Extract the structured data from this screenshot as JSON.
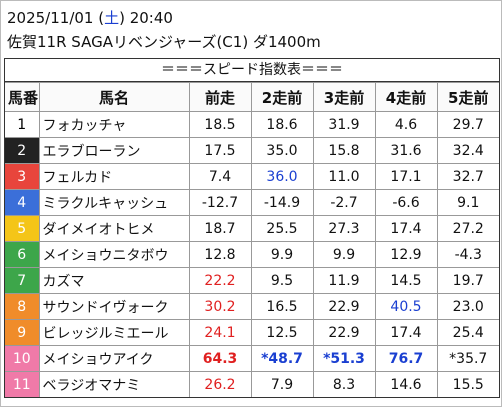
{
  "header": {
    "date_prefix": "2025/11/01 (",
    "weekday": "土",
    "date_suffix": ") 20:40",
    "race": "佐賀11R SAGAリベンジャーズ(C1) ダ1400m"
  },
  "table": {
    "title": "＝＝＝スピード指数表＝＝＝",
    "columns": [
      "馬番",
      "馬名",
      "前走",
      "2走前",
      "3走前",
      "4走前",
      "5走前"
    ],
    "rows": [
      {
        "no": "1",
        "name": "フォカッチャ",
        "frame_color": "#ffffff",
        "frame_text": "#000000",
        "bold": false,
        "values": [
          "18.5",
          "18.6",
          "31.9",
          "4.6",
          "29.7"
        ],
        "colors": [
          null,
          null,
          null,
          null,
          null
        ]
      },
      {
        "no": "2",
        "name": "エラブローラン",
        "frame_color": "#222222",
        "frame_text": "#ffffff",
        "bold": false,
        "values": [
          "17.5",
          "35.0",
          "15.8",
          "31.6",
          "32.4"
        ],
        "colors": [
          null,
          null,
          null,
          null,
          null
        ]
      },
      {
        "no": "3",
        "name": "フェルカド",
        "frame_color": "#e8453c",
        "frame_text": "#ffffff",
        "bold": false,
        "values": [
          "7.4",
          "36.0",
          "11.0",
          "17.1",
          "32.7"
        ],
        "colors": [
          null,
          "#1a3fd1",
          null,
          null,
          null
        ]
      },
      {
        "no": "4",
        "name": "ミラクルキャッシュ",
        "frame_color": "#3b6fd9",
        "frame_text": "#ffffff",
        "bold": false,
        "values": [
          "-12.7",
          "-14.9",
          "-2.7",
          "-6.6",
          "9.1"
        ],
        "colors": [
          null,
          null,
          null,
          null,
          null
        ]
      },
      {
        "no": "5",
        "name": "ダイメイオトヒメ",
        "frame_color": "#f4c518",
        "frame_text": "#ffffff",
        "bold": false,
        "values": [
          "18.7",
          "25.5",
          "27.3",
          "17.4",
          "27.2"
        ],
        "colors": [
          null,
          null,
          null,
          null,
          null
        ]
      },
      {
        "no": "6",
        "name": "メイショウニタボウ",
        "frame_color": "#3da64a",
        "frame_text": "#ffffff",
        "bold": false,
        "values": [
          "12.8",
          "9.9",
          "9.9",
          "12.9",
          "-4.3"
        ],
        "colors": [
          null,
          null,
          null,
          null,
          null
        ]
      },
      {
        "no": "7",
        "name": "カズマ",
        "frame_color": "#3da64a",
        "frame_text": "#ffffff",
        "bold": false,
        "values": [
          "22.2",
          "9.5",
          "11.9",
          "14.5",
          "19.7"
        ],
        "colors": [
          "#e02020",
          null,
          null,
          null,
          null
        ]
      },
      {
        "no": "8",
        "name": "サウンドイヴォーク",
        "frame_color": "#f08c2a",
        "frame_text": "#ffffff",
        "bold": false,
        "values": [
          "30.2",
          "16.5",
          "22.9",
          "40.5",
          "23.0"
        ],
        "colors": [
          "#e02020",
          null,
          null,
          "#1a3fd1",
          null
        ]
      },
      {
        "no": "9",
        "name": "ビレッジルミエール",
        "frame_color": "#f08c2a",
        "frame_text": "#ffffff",
        "bold": false,
        "values": [
          "24.1",
          "12.5",
          "22.9",
          "17.4",
          "25.4"
        ],
        "colors": [
          "#e02020",
          null,
          null,
          null,
          null
        ]
      },
      {
        "no": "10",
        "name": "メイショウアイク",
        "frame_color": "#f07aa8",
        "frame_text": "#ffffff",
        "bold": true,
        "values": [
          "64.3",
          "*48.7",
          "*51.3",
          "76.7",
          "*35.7"
        ],
        "colors": [
          "#e02020",
          "#1a3fd1",
          "#1a3fd1",
          "#1a3fd1",
          null
        ]
      },
      {
        "no": "11",
        "name": "ベラジオマナミ",
        "frame_color": "#f07aa8",
        "frame_text": "#ffffff",
        "bold": false,
        "values": [
          "26.2",
          "7.9",
          "8.3",
          "14.6",
          "15.5"
        ],
        "colors": [
          "#e02020",
          null,
          null,
          null,
          null
        ]
      }
    ]
  }
}
